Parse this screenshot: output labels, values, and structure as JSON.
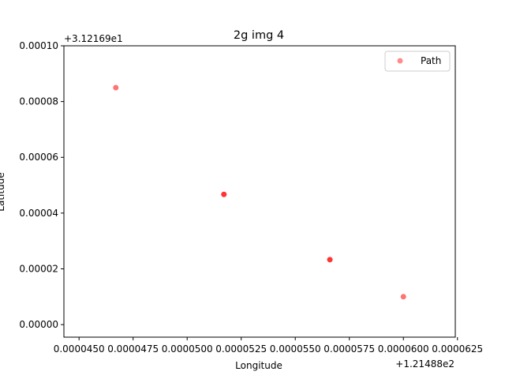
{
  "chart_data": {
    "type": "scatter",
    "title": "2g img 4",
    "xlabel": "Longitude",
    "ylabel": "Latitude",
    "x_offset_label": "+1.21488e2",
    "y_offset_label": "+3.12169e1",
    "xlim": [
      4.43e-05,
      6.24e-05
    ],
    "ylim": [
      -4.5e-06,
      0.0001
    ],
    "x_ticks": [
      4.5e-05,
      4.75e-05,
      5e-05,
      5.25e-05,
      5.5e-05,
      5.75e-05,
      6e-05,
      6.25e-05
    ],
    "x_tick_labels": [
      "0.0000450",
      "0.0000475",
      "0.0000500",
      "0.0000525",
      "0.0000550",
      "0.0000575",
      "0.0000600",
      "0.0000625"
    ],
    "y_ticks": [
      0,
      2e-05,
      4e-05,
      6e-05,
      8e-05,
      0.0001
    ],
    "y_tick_labels": [
      "0.00000",
      "0.00002",
      "0.00004",
      "0.00006",
      "0.00008",
      "0.00010"
    ],
    "grid": false,
    "legend": "top-right",
    "series": [
      {
        "name": "Path",
        "color": "#ff0000",
        "points": [
          {
            "x": 4.67e-05,
            "y": 8.5e-05
          },
          {
            "x": 5.17e-05,
            "y": 4.67e-05
          },
          {
            "x": 5.17e-05,
            "y": 4.67e-05
          },
          {
            "x": 5.66e-05,
            "y": 2.33e-05
          },
          {
            "x": 5.66e-05,
            "y": 2.33e-05
          },
          {
            "x": 6e-05,
            "y": 1e-05
          }
        ]
      }
    ]
  }
}
